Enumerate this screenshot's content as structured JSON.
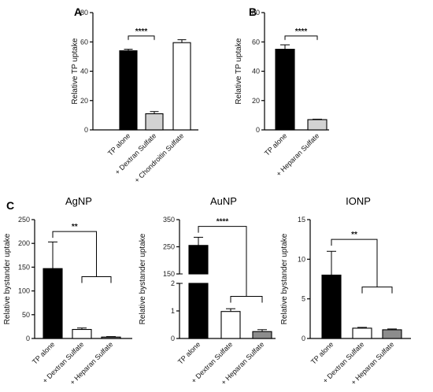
{
  "figure": {
    "panel_letters": [
      "A",
      "B",
      "C"
    ]
  },
  "colors": {
    "black": "#000000",
    "light_gray": "#d2d2d2",
    "white": "#ffffff",
    "dark_gray": "#8c8c8c"
  },
  "chart_data": [
    {
      "id": "A",
      "type": "bar",
      "panel_letter": "A",
      "title": "",
      "ylabel": "Relative TP uptake",
      "ylim": [
        0,
        80
      ],
      "yticks": [
        0,
        20,
        40,
        60,
        80
      ],
      "categories": [
        "TP alone",
        "+ Dextran Sulfate",
        "+ Chondroitin Sulfate"
      ],
      "values": [
        54,
        11,
        59.5
      ],
      "errors": [
        1,
        1.5,
        2
      ],
      "bar_colors": [
        "black",
        "light_gray",
        "white"
      ],
      "significance": [
        {
          "label": "****",
          "from": 0,
          "to": 1,
          "y": 64
        }
      ]
    },
    {
      "id": "B",
      "type": "bar",
      "panel_letter": "B",
      "title": "",
      "ylabel": "Relative TP uptake",
      "ylim": [
        0,
        80
      ],
      "yticks": [
        0,
        20,
        40,
        60,
        80
      ],
      "categories": [
        "TP alone",
        "+ Heparan Sulfate"
      ],
      "values": [
        55,
        7
      ],
      "errors": [
        3,
        0.3
      ],
      "bar_colors": [
        "black",
        "light_gray"
      ],
      "significance": [
        {
          "label": "****",
          "from": 0,
          "to": 1,
          "y": 64
        }
      ]
    },
    {
      "id": "AgNP",
      "type": "bar",
      "panel_letter": "C",
      "title": "AgNP",
      "ylabel": "Relative bystander uptake",
      "ylim": [
        0,
        250
      ],
      "yticks": [
        0,
        50,
        100,
        150,
        200,
        250
      ],
      "categories": [
        "TP alone",
        "+ Dextran Sulfate",
        "+ Heparan Sulfate"
      ],
      "values": [
        147,
        19,
        3
      ],
      "errors": [
        56,
        3,
        1
      ],
      "bar_colors": [
        "black",
        "white",
        "dark_gray"
      ],
      "significance": [
        {
          "label": "**",
          "from": 0,
          "to": [
            1,
            2
          ],
          "y": 225,
          "group_y": 130
        }
      ]
    },
    {
      "id": "AuNP",
      "type": "bar",
      "title": "AuNP",
      "ylabel": "Relative bystander uptake",
      "axis_break": {
        "lower": [
          0,
          2
        ],
        "upper": [
          150,
          350
        ]
      },
      "yticks": [
        0,
        1,
        2,
        150,
        250,
        350
      ],
      "categories": [
        "TP alone",
        "+ Dextran Sulfate",
        "+ Heparan Sulfate"
      ],
      "values": [
        255,
        0.98,
        0.25
      ],
      "errors": [
        30,
        0.1,
        0.07
      ],
      "bar_colors": [
        "black",
        "white",
        "dark_gray"
      ],
      "significance": [
        {
          "label": "****",
          "from": 0,
          "to": [
            1,
            2
          ],
          "y": 325,
          "group_y": 1.53
        }
      ]
    },
    {
      "id": "IONP",
      "type": "bar",
      "title": "IONP",
      "ylabel": "Relative bystander uptake",
      "ylim": [
        0,
        15
      ],
      "yticks": [
        0,
        5,
        10,
        15
      ],
      "categories": [
        "TP alone",
        "+ Dextran Sulfate",
        "+ Heparan Sulfate"
      ],
      "values": [
        8,
        1.3,
        1.1
      ],
      "errors": [
        3,
        0.1,
        0.1
      ],
      "bar_colors": [
        "black",
        "white",
        "dark_gray"
      ],
      "significance": [
        {
          "label": "**",
          "from": 0,
          "to": [
            1,
            2
          ],
          "y": 12.5,
          "group_y": 6.5
        }
      ]
    }
  ]
}
